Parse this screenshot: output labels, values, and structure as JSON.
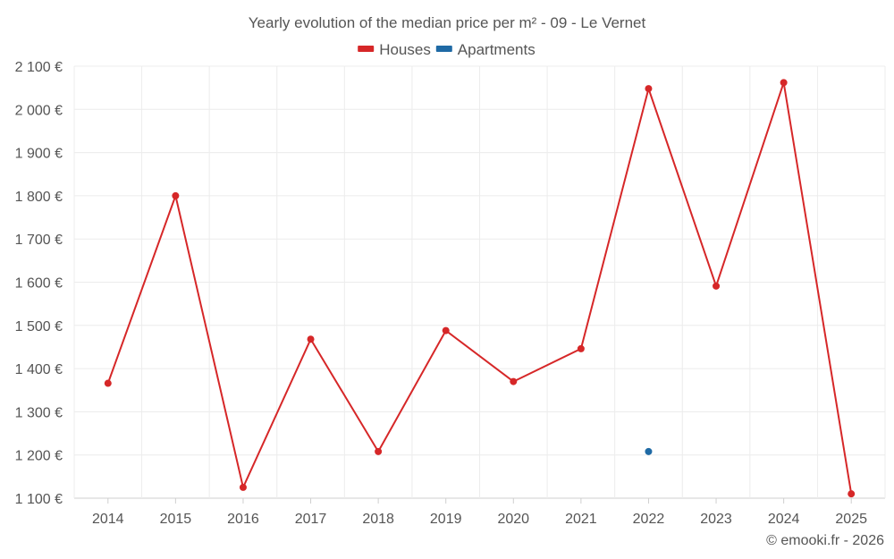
{
  "chart_data": {
    "type": "line",
    "title": "Yearly evolution of the median price per m² - 09 - Le Vernet",
    "categories": [
      "2014",
      "2015",
      "2016",
      "2017",
      "2018",
      "2019",
      "2020",
      "2021",
      "2022",
      "2023",
      "2024",
      "2025"
    ],
    "ylim": [
      1100,
      2100
    ],
    "yticks": [
      1100,
      1200,
      1300,
      1400,
      1500,
      1600,
      1700,
      1800,
      1900,
      2000,
      2100
    ],
    "ytick_labels": [
      "1 100 €",
      "1 200 €",
      "1 300 €",
      "1 400 €",
      "1 500 €",
      "1 600 €",
      "1 700 €",
      "1 800 €",
      "1 900 €",
      "2 000 €",
      "2 100 €"
    ],
    "legend_position": "top-center",
    "grid": true,
    "series": [
      {
        "name": "Houses",
        "color": "#d62728",
        "values": [
          1366,
          1800,
          1125,
          1468,
          1208,
          1488,
          1370,
          1446,
          2048,
          1591,
          2062,
          1110
        ]
      },
      {
        "name": "Apartments",
        "color": "#1f6aa5",
        "values": [
          null,
          null,
          null,
          null,
          null,
          null,
          null,
          null,
          1208,
          null,
          null,
          null
        ]
      }
    ]
  },
  "credit": "© emooki.fr - 2026"
}
